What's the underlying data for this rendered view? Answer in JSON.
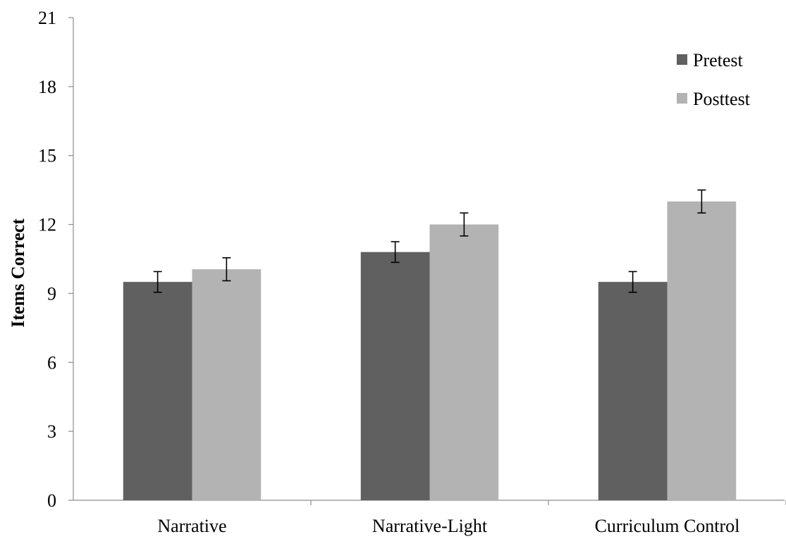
{
  "chart_data": {
    "type": "bar",
    "ylabel": "Items Correct",
    "xlabel": "",
    "ylim": [
      0,
      21
    ],
    "yticks": [
      "0",
      "3",
      "6",
      "9",
      "12",
      "15",
      "18",
      "21"
    ],
    "grid": false,
    "legend_position": "top-right",
    "categories": [
      "Narrative",
      "Narrative-Light",
      "Curriculum Control"
    ],
    "series": [
      {
        "name": "Pretest",
        "color": "#606060",
        "values": [
          9.5,
          10.8,
          9.5
        ],
        "error": [
          0.45,
          0.45,
          0.45
        ]
      },
      {
        "name": "Posttest",
        "color": "#b3b3b3",
        "values": [
          10.05,
          12.0,
          13.0
        ],
        "error": [
          0.5,
          0.5,
          0.5
        ]
      }
    ]
  }
}
